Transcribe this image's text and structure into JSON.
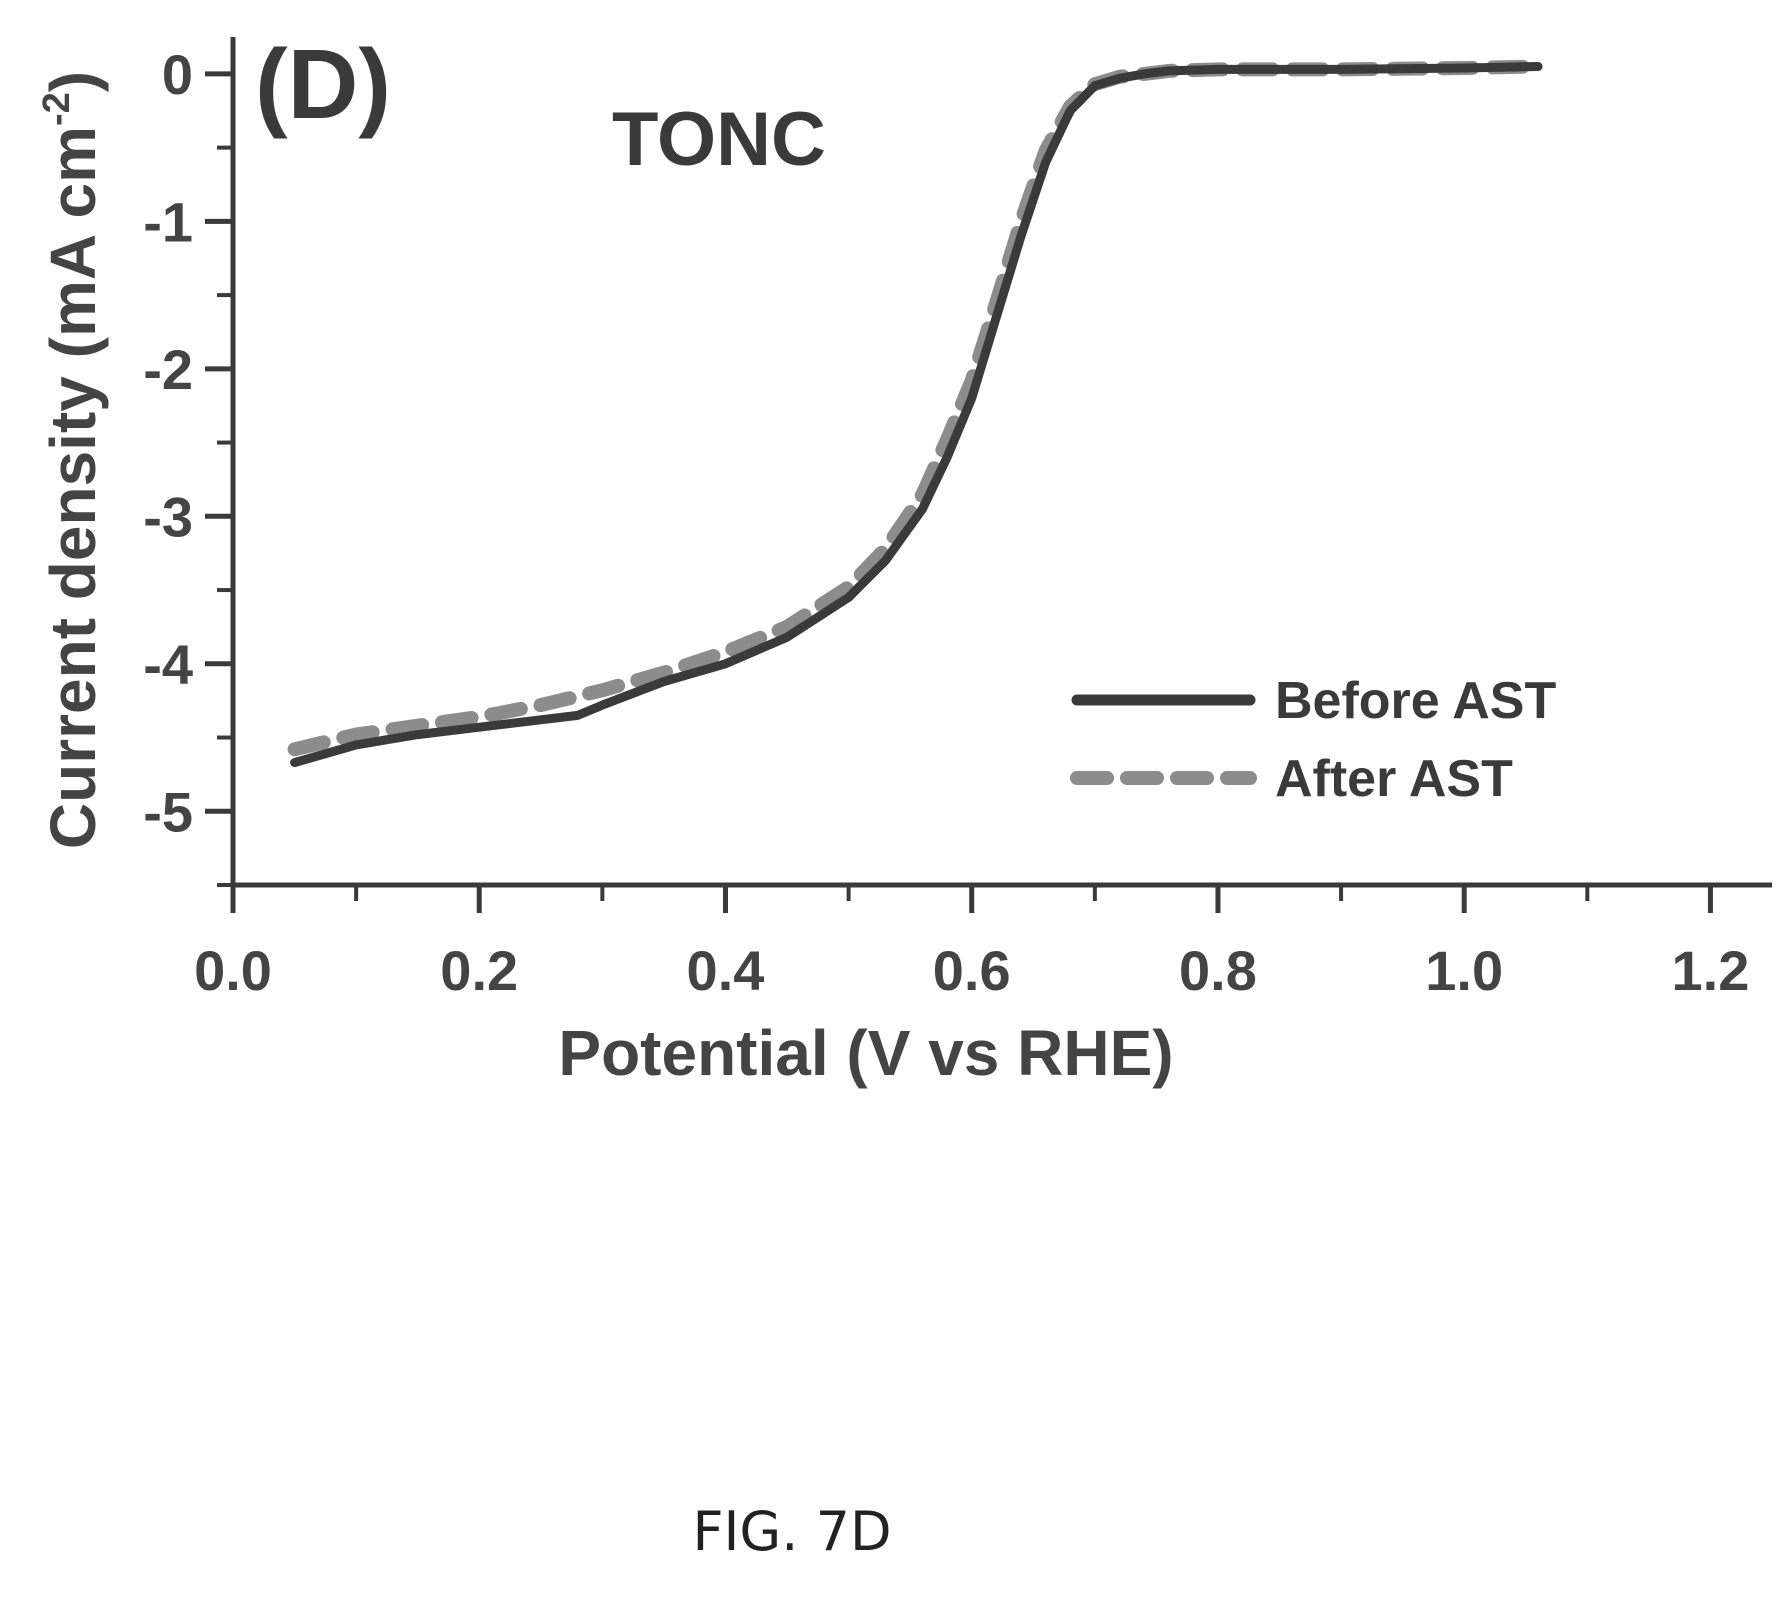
{
  "chart_data": {
    "type": "line",
    "panel_label": "(D)",
    "sample_label": "TONC",
    "xlabel": "Potential (V vs RHE)",
    "ylabel_main": "Current density (mA cm",
    "ylabel_sup": "-2",
    "ylabel_close": ")",
    "xlim": [
      0.0,
      1.25
    ],
    "ylim": [
      -5.5,
      0.25
    ],
    "xticks": [
      "0.0",
      "0.2",
      "0.4",
      "0.6",
      "0.8",
      "1.0",
      "1.2"
    ],
    "yticks": [
      "0",
      "-1",
      "-2",
      "-3",
      "-4",
      "-5"
    ],
    "legend_position": "lower-right",
    "series": [
      {
        "name": "Before AST",
        "style": "solid",
        "color": "#3a3a3a",
        "x": [
          0.05,
          0.1,
          0.15,
          0.2,
          0.25,
          0.28,
          0.3,
          0.35,
          0.4,
          0.45,
          0.5,
          0.53,
          0.56,
          0.58,
          0.6,
          0.62,
          0.64,
          0.66,
          0.68,
          0.7,
          0.72,
          0.74,
          0.76,
          0.8,
          0.9,
          1.0,
          1.06
        ],
        "y": [
          -4.67,
          -4.55,
          -4.48,
          -4.43,
          -4.38,
          -4.35,
          -4.28,
          -4.12,
          -4.0,
          -3.82,
          -3.55,
          -3.3,
          -2.95,
          -2.6,
          -2.2,
          -1.65,
          -1.1,
          -0.6,
          -0.25,
          -0.08,
          -0.03,
          0.0,
          0.02,
          0.03,
          0.03,
          0.04,
          0.05
        ]
      },
      {
        "name": "After AST",
        "style": "dashed",
        "color": "#8c8c8c",
        "x": [
          0.05,
          0.1,
          0.15,
          0.2,
          0.25,
          0.3,
          0.35,
          0.4,
          0.45,
          0.5,
          0.53,
          0.56,
          0.58,
          0.6,
          0.62,
          0.64,
          0.66,
          0.68,
          0.7,
          0.72,
          0.74,
          0.76,
          0.8,
          0.9,
          1.0,
          1.06
        ],
        "y": [
          -4.58,
          -4.48,
          -4.42,
          -4.36,
          -4.28,
          -4.18,
          -4.06,
          -3.92,
          -3.75,
          -3.48,
          -3.22,
          -2.85,
          -2.48,
          -2.08,
          -1.55,
          -1.0,
          -0.52,
          -0.22,
          -0.07,
          -0.02,
          0.0,
          0.02,
          0.03,
          0.03,
          0.04,
          0.05
        ]
      }
    ]
  },
  "figure_caption": "FIG. 7D"
}
